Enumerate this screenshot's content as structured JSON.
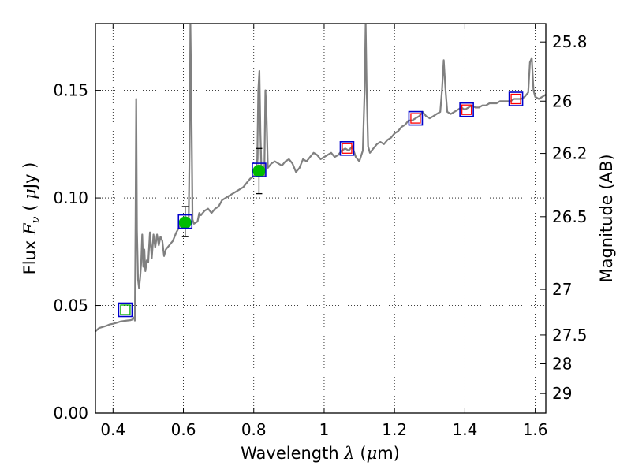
{
  "chart_data": {
    "type": "line",
    "xlabel": {
      "text": "Wavelength",
      "symbol": "λ",
      "unit_open": " (",
      "unit_mu": "μ",
      "unit_rest": "m)"
    },
    "ylabel": {
      "text": "Flux",
      "symbol": "F",
      "sub": "ν",
      "unit_open": " ( ",
      "unit_mu": "μ",
      "unit_rest": "Jy )"
    },
    "y2label": "Magnitude (AB)",
    "xlim": [
      0.35,
      1.63
    ],
    "ylim": [
      0.0,
      0.181
    ],
    "grid": true,
    "x_ticks": [
      {
        "value": 0.4,
        "label": "0.4"
      },
      {
        "value": 0.6,
        "label": "0.6"
      },
      {
        "value": 0.8,
        "label": "0.8"
      },
      {
        "value": 1.0,
        "label": "1"
      },
      {
        "value": 1.2,
        "label": "1.2"
      },
      {
        "value": 1.4,
        "label": "1.4"
      },
      {
        "value": 1.6,
        "label": "1.6"
      }
    ],
    "y_ticks": [
      {
        "value": 0.0,
        "label": "0.00"
      },
      {
        "value": 0.05,
        "label": "0.05"
      },
      {
        "value": 0.1,
        "label": "0.10"
      },
      {
        "value": 0.15,
        "label": "0.15"
      }
    ],
    "y2_ticks": [
      {
        "flux": 0.1725,
        "label": "25.8"
      },
      {
        "flux": 0.145,
        "label": "26"
      },
      {
        "flux": 0.1207,
        "label": "26.2"
      },
      {
        "flux": 0.0913,
        "label": "26.5"
      },
      {
        "flux": 0.0575,
        "label": "27"
      },
      {
        "flux": 0.0363,
        "label": "27.5"
      },
      {
        "flux": 0.0229,
        "label": "28"
      },
      {
        "flux": 0.0091,
        "label": "29"
      }
    ],
    "spectrum": {
      "color": "#808080",
      "points": [
        [
          0.35,
          0.038
        ],
        [
          0.36,
          0.0395
        ],
        [
          0.37,
          0.04
        ],
        [
          0.38,
          0.0405
        ],
        [
          0.39,
          0.0412
        ],
        [
          0.4,
          0.0415
        ],
        [
          0.41,
          0.042
        ],
        [
          0.42,
          0.0425
        ],
        [
          0.43,
          0.0428
        ],
        [
          0.44,
          0.043
        ],
        [
          0.45,
          0.0432
        ],
        [
          0.455,
          0.0435
        ],
        [
          0.46,
          0.0445
        ],
        [
          0.462,
          0.043
        ],
        [
          0.464,
          0.09
        ],
        [
          0.466,
          0.146
        ],
        [
          0.468,
          0.085
        ],
        [
          0.471,
          0.062
        ],
        [
          0.474,
          0.058
        ],
        [
          0.477,
          0.063
        ],
        [
          0.48,
          0.07
        ],
        [
          0.483,
          0.083
        ],
        [
          0.486,
          0.068
        ],
        [
          0.489,
          0.076
        ],
        [
          0.492,
          0.066
        ],
        [
          0.496,
          0.071
        ],
        [
          0.5,
          0.07
        ],
        [
          0.505,
          0.084
        ],
        [
          0.51,
          0.072
        ],
        [
          0.515,
          0.083
        ],
        [
          0.52,
          0.077
        ],
        [
          0.525,
          0.083
        ],
        [
          0.53,
          0.078
        ],
        [
          0.535,
          0.082
        ],
        [
          0.54,
          0.08
        ],
        [
          0.545,
          0.073
        ],
        [
          0.55,
          0.076
        ],
        [
          0.56,
          0.078
        ],
        [
          0.57,
          0.08
        ],
        [
          0.58,
          0.084
        ],
        [
          0.59,
          0.087
        ],
        [
          0.6,
          0.088
        ],
        [
          0.61,
          0.088
        ],
        [
          0.615,
          0.089
        ],
        [
          0.618,
          0.13
        ],
        [
          0.62,
          0.181
        ],
        [
          0.623,
          0.14
        ],
        [
          0.626,
          0.09
        ],
        [
          0.63,
          0.088
        ],
        [
          0.64,
          0.089
        ],
        [
          0.645,
          0.093
        ],
        [
          0.65,
          0.092
        ],
        [
          0.66,
          0.094
        ],
        [
          0.67,
          0.095
        ],
        [
          0.68,
          0.093
        ],
        [
          0.69,
          0.095
        ],
        [
          0.7,
          0.096
        ],
        [
          0.71,
          0.099
        ],
        [
          0.72,
          0.1
        ],
        [
          0.73,
          0.101
        ],
        [
          0.74,
          0.102
        ],
        [
          0.75,
          0.103
        ],
        [
          0.76,
          0.104
        ],
        [
          0.77,
          0.105
        ],
        [
          0.78,
          0.107
        ],
        [
          0.79,
          0.109
        ],
        [
          0.8,
          0.11
        ],
        [
          0.805,
          0.112
        ],
        [
          0.81,
          0.118
        ],
        [
          0.813,
          0.15
        ],
        [
          0.816,
          0.159
        ],
        [
          0.819,
          0.13
        ],
        [
          0.822,
          0.112
        ],
        [
          0.83,
          0.11
        ],
        [
          0.833,
          0.15
        ],
        [
          0.836,
          0.14
        ],
        [
          0.84,
          0.114
        ],
        [
          0.85,
          0.116
        ],
        [
          0.86,
          0.117
        ],
        [
          0.87,
          0.116
        ],
        [
          0.88,
          0.115
        ],
        [
          0.89,
          0.117
        ],
        [
          0.9,
          0.118
        ],
        [
          0.91,
          0.116
        ],
        [
          0.92,
          0.112
        ],
        [
          0.93,
          0.114
        ],
        [
          0.94,
          0.118
        ],
        [
          0.95,
          0.117
        ],
        [
          0.96,
          0.119
        ],
        [
          0.97,
          0.121
        ],
        [
          0.98,
          0.12
        ],
        [
          0.99,
          0.118
        ],
        [
          1.0,
          0.119
        ],
        [
          1.01,
          0.12
        ],
        [
          1.02,
          0.121
        ],
        [
          1.03,
          0.119
        ],
        [
          1.04,
          0.12
        ],
        [
          1.05,
          0.122
        ],
        [
          1.06,
          0.123
        ],
        [
          1.07,
          0.122
        ],
        [
          1.08,
          0.124
        ],
        [
          1.09,
          0.119
        ],
        [
          1.1,
          0.117
        ],
        [
          1.11,
          0.122
        ],
        [
          1.115,
          0.15
        ],
        [
          1.118,
          0.181
        ],
        [
          1.121,
          0.15
        ],
        [
          1.125,
          0.124
        ],
        [
          1.13,
          0.121
        ],
        [
          1.14,
          0.123
        ],
        [
          1.15,
          0.125
        ],
        [
          1.16,
          0.126
        ],
        [
          1.17,
          0.125
        ],
        [
          1.18,
          0.127
        ],
        [
          1.19,
          0.128
        ],
        [
          1.2,
          0.13
        ],
        [
          1.21,
          0.131
        ],
        [
          1.22,
          0.133
        ],
        [
          1.23,
          0.134
        ],
        [
          1.24,
          0.136
        ],
        [
          1.25,
          0.136
        ],
        [
          1.26,
          0.137
        ],
        [
          1.27,
          0.138
        ],
        [
          1.28,
          0.14
        ],
        [
          1.29,
          0.138
        ],
        [
          1.3,
          0.137
        ],
        [
          1.31,
          0.138
        ],
        [
          1.32,
          0.139
        ],
        [
          1.33,
          0.14
        ],
        [
          1.335,
          0.15
        ],
        [
          1.34,
          0.164
        ],
        [
          1.345,
          0.15
        ],
        [
          1.35,
          0.14
        ],
        [
          1.36,
          0.139
        ],
        [
          1.37,
          0.14
        ],
        [
          1.38,
          0.141
        ],
        [
          1.39,
          0.142
        ],
        [
          1.4,
          0.141
        ],
        [
          1.41,
          0.142
        ],
        [
          1.42,
          0.143
        ],
        [
          1.43,
          0.142
        ],
        [
          1.44,
          0.142
        ],
        [
          1.45,
          0.143
        ],
        [
          1.46,
          0.143
        ],
        [
          1.47,
          0.144
        ],
        [
          1.48,
          0.144
        ],
        [
          1.49,
          0.144
        ],
        [
          1.5,
          0.145
        ],
        [
          1.51,
          0.145
        ],
        [
          1.52,
          0.145
        ],
        [
          1.53,
          0.145
        ],
        [
          1.54,
          0.146
        ],
        [
          1.55,
          0.146
        ],
        [
          1.56,
          0.146
        ],
        [
          1.57,
          0.147
        ],
        [
          1.58,
          0.149
        ],
        [
          1.585,
          0.163
        ],
        [
          1.59,
          0.165
        ],
        [
          1.595,
          0.15
        ],
        [
          1.6,
          0.147
        ],
        [
          1.61,
          0.146
        ],
        [
          1.62,
          0.147
        ],
        [
          1.63,
          0.148
        ]
      ]
    },
    "model_photometry": {
      "marker": "square",
      "color": "#0000cc",
      "points": [
        [
          0.435,
          0.048
        ],
        [
          0.605,
          0.089
        ],
        [
          0.815,
          0.113
        ],
        [
          1.065,
          0.123
        ],
        [
          1.26,
          0.137
        ],
        [
          1.405,
          0.141
        ],
        [
          1.545,
          0.146
        ]
      ]
    },
    "observed_green": {
      "marker": "square",
      "color": "#00aa00",
      "points": [
        [
          0.435,
          0.048
        ]
      ]
    },
    "observed_red": {
      "marker": "square",
      "color": "#ff0000",
      "points": [
        [
          1.065,
          0.123
        ],
        [
          1.26,
          0.137
        ],
        [
          1.405,
          0.141
        ],
        [
          1.545,
          0.146
        ]
      ]
    },
    "detections": {
      "marker": "circle",
      "color": "#00bb00",
      "points": [
        {
          "x": 0.605,
          "y": 0.0885,
          "err_low": 0.0065,
          "err_high": 0.0075
        },
        {
          "x": 0.815,
          "y": 0.1125,
          "err_low": 0.0105,
          "err_high": 0.0105
        }
      ]
    }
  }
}
